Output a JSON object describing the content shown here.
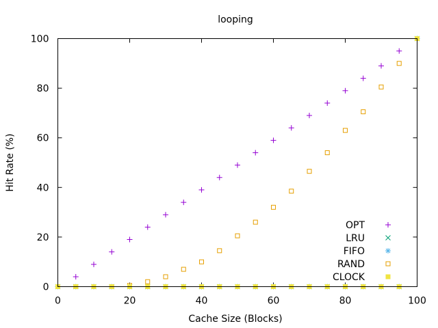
{
  "chart_data": {
    "type": "scatter",
    "title": "looping",
    "xlabel": "Cache Size (Blocks)",
    "ylabel": "Hit Rate (%)",
    "xlim": [
      0,
      100
    ],
    "ylim": [
      0,
      100
    ],
    "xticks": [
      0,
      20,
      40,
      60,
      80,
      100
    ],
    "yticks": [
      0,
      20,
      40,
      60,
      80,
      100
    ],
    "grid": false,
    "legend_position": "bottom-right",
    "x": [
      0,
      5,
      10,
      15,
      20,
      25,
      30,
      35,
      40,
      45,
      50,
      55,
      60,
      65,
      70,
      75,
      80,
      85,
      90,
      95,
      100
    ],
    "series": [
      {
        "name": "OPT",
        "marker": "plus",
        "color": "#9400d3",
        "values": [
          0,
          4,
          9,
          14,
          19,
          24,
          29,
          34,
          39,
          44,
          49,
          54,
          59,
          64,
          69,
          74,
          79,
          84,
          89,
          95,
          100
        ]
      },
      {
        "name": "LRU",
        "marker": "cross",
        "color": "#009e73",
        "values": [
          0,
          0,
          0,
          0,
          0,
          0,
          0,
          0,
          0,
          0,
          0,
          0,
          0,
          0,
          0,
          0,
          0,
          0,
          0,
          0,
          100
        ]
      },
      {
        "name": "FIFO",
        "marker": "star",
        "color": "#56b4e9",
        "values": [
          0,
          0,
          0,
          0,
          0,
          0,
          0,
          0,
          0,
          0,
          0,
          0,
          0,
          0,
          0,
          0,
          0,
          0,
          0,
          0,
          100
        ]
      },
      {
        "name": "RAND",
        "marker": "open-square",
        "color": "#e69f00",
        "values": [
          0,
          0,
          0,
          0,
          0.5,
          2,
          4,
          7,
          10,
          14.5,
          20.5,
          26,
          32,
          38.5,
          46.5,
          54,
          63,
          70.5,
          80.5,
          90,
          100
        ]
      },
      {
        "name": "CLOCK",
        "marker": "filled-square",
        "color": "#f0e442",
        "values": [
          0,
          0,
          0,
          0,
          0,
          0,
          0,
          0,
          0,
          0,
          0,
          0,
          0,
          0,
          0,
          0,
          0,
          0,
          0,
          0,
          100
        ]
      }
    ]
  }
}
